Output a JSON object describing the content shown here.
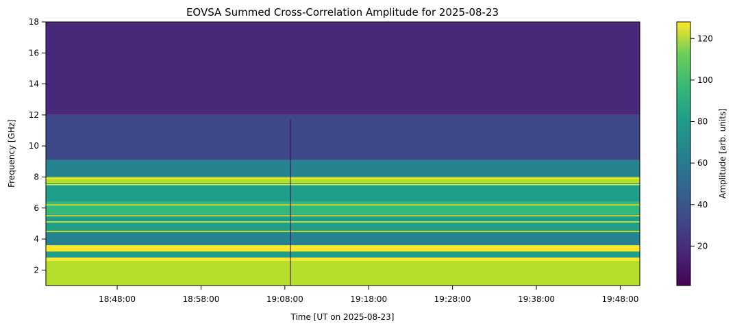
{
  "chart_data": {
    "type": "heatmap",
    "title": "EOVSA Summed Cross-Correlation Amplitude for 2025-08-23",
    "xlabel": "Time [UT on 2025-08-23]",
    "ylabel": "Frequency [GHz]",
    "x_tick_labels": [
      "18:48:00",
      "18:58:00",
      "19:08:00",
      "19:18:00",
      "19:28:00",
      "19:38:00",
      "19:48:00"
    ],
    "x_range": [
      "18:39:30",
      "19:50:20"
    ],
    "y_ticks": [
      2,
      4,
      6,
      8,
      10,
      12,
      14,
      16,
      18
    ],
    "ylim": [
      1.0,
      18.0
    ],
    "colormap": "viridis",
    "colorbar": {
      "label": "Amplitude [arb. units]",
      "ticks": [
        20,
        40,
        60,
        80,
        100,
        120
      ],
      "range": [
        1,
        128
      ]
    },
    "grid": false,
    "bands_ghz": [
      {
        "from": 1.0,
        "to": 2.6,
        "level": 0.88
      },
      {
        "from": 2.6,
        "to": 2.8,
        "level": 0.98
      },
      {
        "from": 2.8,
        "to": 3.2,
        "level": 0.6
      },
      {
        "from": 3.2,
        "to": 3.6,
        "level": 0.97
      },
      {
        "from": 3.6,
        "to": 4.4,
        "level": 0.48
      },
      {
        "from": 4.4,
        "to": 5.6,
        "level": 0.58
      },
      {
        "from": 5.6,
        "to": 6.4,
        "level": 0.7
      },
      {
        "from": 6.4,
        "to": 7.6,
        "level": 0.52
      },
      {
        "from": 7.6,
        "to": 8.0,
        "level": 0.9
      },
      {
        "from": 8.0,
        "to": 9.1,
        "level": 0.4
      },
      {
        "from": 9.1,
        "to": 12.0,
        "level": 0.2
      },
      {
        "from": 12.0,
        "to": 18.0,
        "level": 0.08
      }
    ],
    "bright_lines_ghz": [
      2.7,
      3.3,
      3.5,
      4.5,
      5.1,
      5.5,
      6.2,
      7.5,
      7.9
    ],
    "vertical_dark_line_time": "19:08:40"
  },
  "colors": {
    "viridis_low": "#440154",
    "viridis_mid": "#21908c",
    "viridis_high": "#fde725"
  }
}
